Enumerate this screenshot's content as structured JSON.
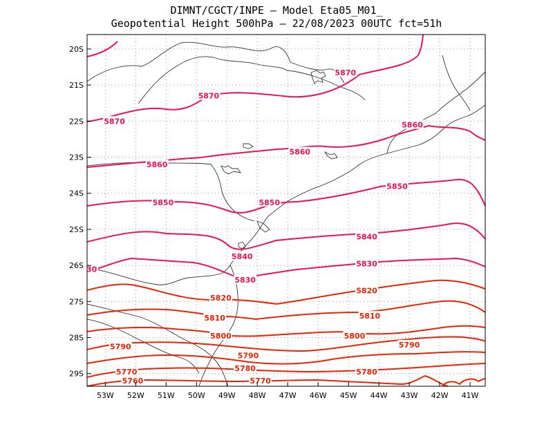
{
  "title": {
    "line1": "DIMNT/CGCT/INPE –  Model Eta05_M01_",
    "line2": "Geopotential Height 500hPa –  22/08/2023 00UTC fct=51h"
  },
  "axes": {
    "lat_labels": [
      "20S",
      "21S",
      "22S",
      "23S",
      "24S",
      "25S",
      "26S",
      "27S",
      "28S",
      "29S"
    ],
    "lon_labels": [
      "53W",
      "52W",
      "51W",
      "50W",
      "49W",
      "48W",
      "47W",
      "46W",
      "45W",
      "44W",
      "43W",
      "42W",
      "41W"
    ]
  },
  "colors": {
    "high_contours": "#ee1155",
    "low_contours": "#ee2200",
    "coastline": "#333333",
    "grid": "#999999"
  },
  "contour_labels": [
    {
      "text": "5870",
      "lon": -45.1,
      "lat": -20.65
    },
    {
      "text": "5870",
      "lon": -49.6,
      "lat": -21.3
    },
    {
      "text": "5870",
      "lon": -52.7,
      "lat": -22.0
    },
    {
      "text": "5860",
      "lon": -42.9,
      "lat": -22.1
    },
    {
      "text": "5860",
      "lon": -46.6,
      "lat": -22.85
    },
    {
      "text": "5860",
      "lon": -51.3,
      "lat": -23.2
    },
    {
      "text": "5850",
      "lon": -43.4,
      "lat": -23.8
    },
    {
      "text": "5850",
      "lon": -47.6,
      "lat": -24.25
    },
    {
      "text": "5850",
      "lon": -51.1,
      "lat": -24.25
    },
    {
      "text": "5840",
      "lon": -44.4,
      "lat": -25.2
    },
    {
      "text": "5840",
      "lon": -48.5,
      "lat": -25.75
    },
    {
      "text": "5830",
      "lon": -44.4,
      "lat": -25.95
    },
    {
      "text": "5830",
      "lon": -48.4,
      "lat": -26.4
    },
    {
      "text": "30",
      "lon": -53.45,
      "lat": -26.1
    },
    {
      "text": "5820",
      "lon": -44.4,
      "lat": -26.7
    },
    {
      "text": "5820",
      "lon": -49.2,
      "lat": -26.9
    },
    {
      "text": "5810",
      "lon": -44.3,
      "lat": -27.4
    },
    {
      "text": "5810",
      "lon": -49.4,
      "lat": -27.45
    },
    {
      "text": "5800",
      "lon": -44.8,
      "lat": -27.95
    },
    {
      "text": "5800",
      "lon": -49.2,
      "lat": -27.95
    },
    {
      "text": "5790",
      "lon": -43.0,
      "lat": -28.2
    },
    {
      "text": "5790",
      "lon": -52.5,
      "lat": -28.25
    },
    {
      "text": "5790",
      "lon": -48.3,
      "lat": -28.5
    },
    {
      "text": "5780",
      "lon": -48.4,
      "lat": -28.85
    },
    {
      "text": "5780",
      "lon": -44.4,
      "lat": -28.95
    },
    {
      "text": "5770",
      "lon": -52.3,
      "lat": -28.95
    },
    {
      "text": "5770",
      "lon": -47.9,
      "lat": -29.2
    },
    {
      "text": "5760",
      "lon": -52.1,
      "lat": -29.2
    }
  ]
}
